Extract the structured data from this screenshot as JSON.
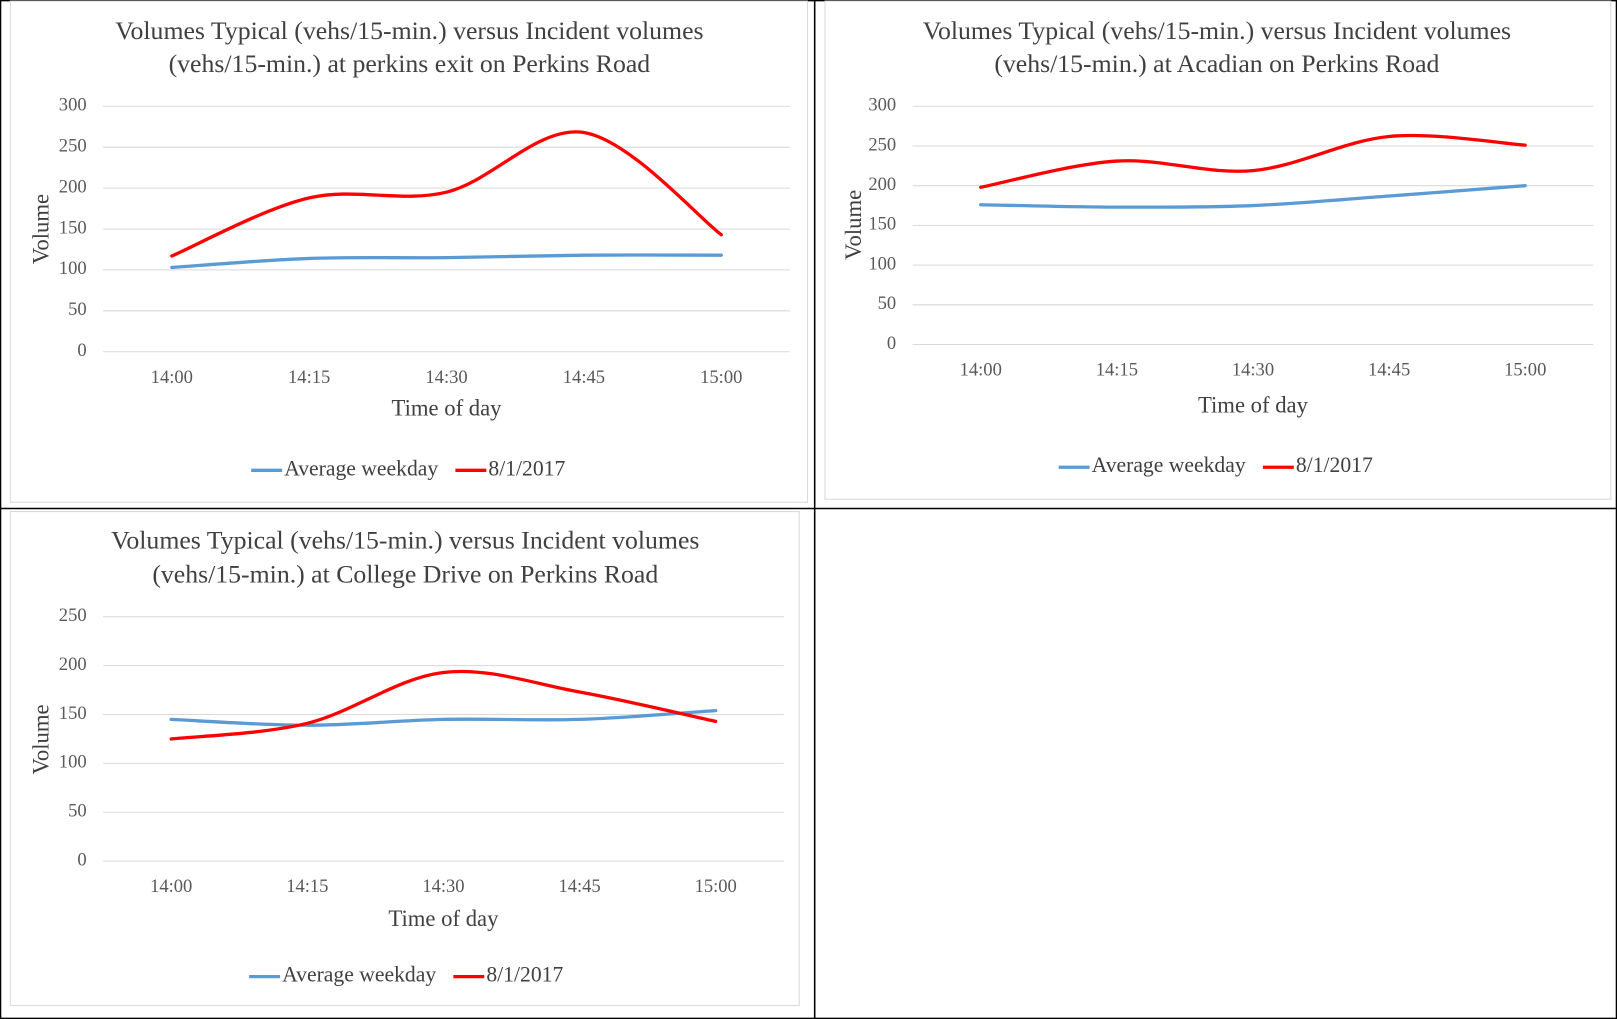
{
  "chart_data": [
    {
      "type": "line",
      "title": [
        "Volumes Typical (vehs/15-min.) versus Incident volumes",
        "(vehs/15-min.) at perkins exit on Perkins Road"
      ],
      "x_label": "Time of day",
      "y_label": "Volume",
      "categories": [
        "14:00",
        "14:15",
        "14:30",
        "14:45",
        "15:00"
      ],
      "ylim": [
        0,
        300
      ],
      "yticks": [
        0,
        50,
        100,
        150,
        200,
        250,
        300
      ],
      "grid": true,
      "legend": "bottom",
      "series": [
        {
          "name": "Average weekday",
          "color": "#5b9bd5",
          "values": [
            103,
            114,
            115,
            118,
            118
          ]
        },
        {
          "name": "8/1/2017",
          "color": "#ff0000",
          "values": [
            117,
            188,
            195,
            268,
            143
          ]
        }
      ]
    },
    {
      "type": "line",
      "title": [
        "Volumes Typical (vehs/15-min.) versus Incident volumes",
        "(vehs/15-min.) at Acadian on Perkins Road"
      ],
      "x_label": "Time of day",
      "y_label": "Volume",
      "categories": [
        "14:00",
        "14:15",
        "14:30",
        "14:45",
        "15:00"
      ],
      "ylim": [
        0,
        300
      ],
      "yticks": [
        0,
        50,
        100,
        150,
        200,
        250,
        300
      ],
      "grid": true,
      "legend": "bottom",
      "series": [
        {
          "name": "Average weekday",
          "color": "#5b9bd5",
          "values": [
            176,
            173,
            175,
            187,
            200
          ]
        },
        {
          "name": "8/1/2017",
          "color": "#ff0000",
          "values": [
            198,
            231,
            219,
            262,
            251
          ]
        }
      ]
    },
    {
      "type": "line",
      "title": [
        "Volumes Typical (vehs/15-min.) versus Incident volumes",
        "(vehs/15-min.) at College Drive on Perkins Road"
      ],
      "x_label": "Time of day",
      "y_label": "Volume",
      "categories": [
        "14:00",
        "14:15",
        "14:30",
        "14:45",
        "15:00"
      ],
      "ylim": [
        0,
        250
      ],
      "yticks": [
        0,
        50,
        100,
        150,
        200,
        250
      ],
      "grid": true,
      "legend": "bottom",
      "series": [
        {
          "name": "Average weekday",
          "color": "#5b9bd5",
          "values": [
            145,
            139,
            145,
            145,
            154
          ]
        },
        {
          "name": "8/1/2017",
          "color": "#ff0000",
          "values": [
            125,
            141,
            193,
            173,
            143
          ]
        }
      ]
    }
  ]
}
